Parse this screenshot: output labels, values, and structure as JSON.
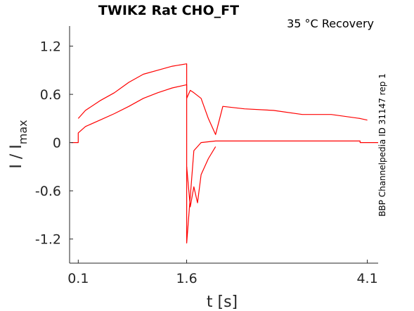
{
  "chart_data": {
    "type": "line",
    "title": "TWIK2  Rat  CHO_FT",
    "annotation": "35 °C  Recovery",
    "side_label": "BBP Channelpedia ID 31147 rep 1",
    "xlabel": "t [s]",
    "ylabel_main": "I / I",
    "ylabel_sub": "max",
    "xlim": [
      -0.02,
      4.25
    ],
    "ylim": [
      -1.5,
      1.45
    ],
    "xticks": [
      0.1,
      1.6,
      4.1
    ],
    "xtick_labels": [
      "0.1",
      "1.6",
      "4.1"
    ],
    "yticks": [
      -1.2,
      -0.6,
      0,
      0.6,
      1.2
    ],
    "ytick_labels": [
      "-1.2",
      "-0.6",
      "0",
      "0.6",
      "1.2"
    ],
    "line_color": "#ff0000",
    "grid": false,
    "series": [
      {
        "x": [
          0,
          0.1,
          0.1,
          0.2,
          0.4,
          0.6,
          0.8,
          1.0,
          1.2,
          1.4,
          1.6,
          1.6,
          1.7,
          1.8,
          1.9,
          2.0,
          2.4,
          3.0,
          3.6,
          4.0,
          4.0,
          4.25
        ],
        "y": [
          0,
          0,
          0.12,
          0.2,
          0.28,
          0.36,
          0.45,
          0.55,
          0.62,
          0.68,
          0.72,
          -1.25,
          -0.1,
          0,
          0.01,
          0.02,
          0.02,
          0.02,
          0.02,
          0.02,
          0,
          0
        ]
      },
      {
        "x": [
          0.1,
          0.2,
          0.4,
          0.6,
          0.8,
          1.0,
          1.2,
          1.4,
          1.6,
          1.6,
          1.65,
          1.7,
          1.8,
          1.9,
          2.0,
          2.1,
          2.4,
          2.8,
          3.2,
          3.6,
          4.0,
          4.1
        ],
        "y": [
          0.3,
          0.4,
          0.52,
          0.62,
          0.75,
          0.85,
          0.9,
          0.95,
          0.98,
          0.55,
          0.65,
          0.62,
          0.55,
          0.3,
          0.1,
          0.45,
          0.42,
          0.4,
          0.35,
          0.35,
          0.3,
          0.28
        ]
      },
      {
        "x": [
          1.6,
          1.65,
          1.7,
          1.75,
          1.8,
          1.9,
          2.0
        ],
        "y": [
          -0.3,
          -0.8,
          -0.55,
          -0.75,
          -0.4,
          -0.2,
          -0.05
        ]
      }
    ]
  }
}
